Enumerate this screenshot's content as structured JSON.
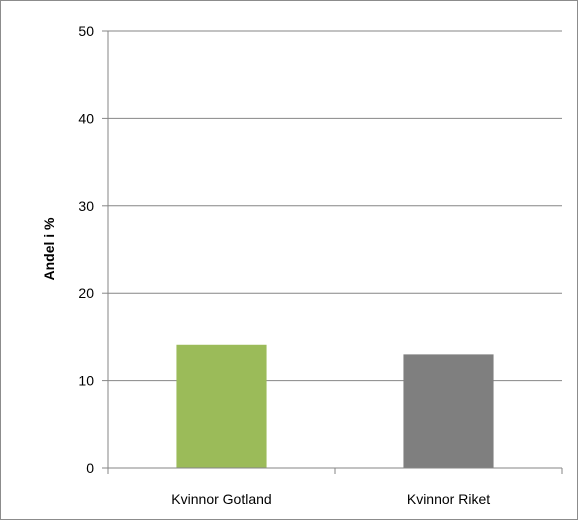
{
  "chart_data": {
    "type": "bar",
    "categories": [
      "Kvinnor Gotland",
      "Kvinnor Riket"
    ],
    "values": [
      14.1,
      13.0
    ],
    "bar_colors": [
      "#9bbb59",
      "#7f7f7f"
    ],
    "title": "",
    "xlabel": "",
    "ylabel": "Andel i %",
    "ylim": [
      0,
      50
    ],
    "yticks": [
      0,
      10,
      20,
      30,
      40,
      50
    ],
    "grid": true,
    "legend": "none"
  }
}
